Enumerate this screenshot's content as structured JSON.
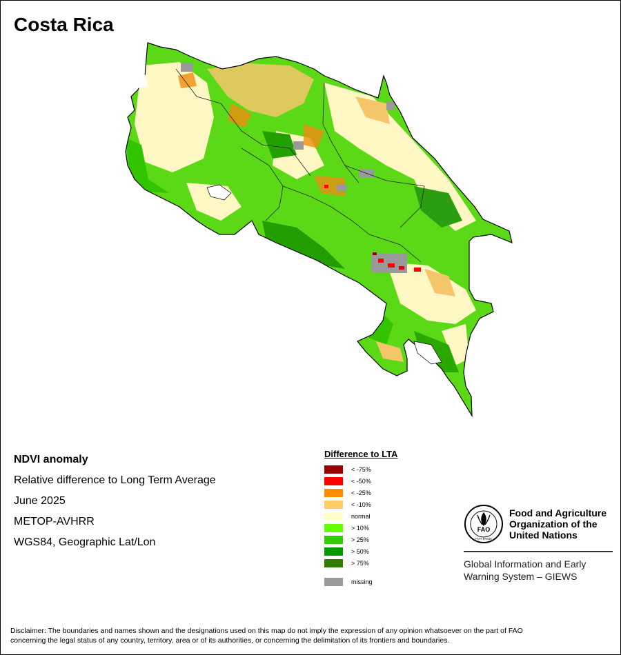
{
  "title": "Costa Rica",
  "info": {
    "heading": "NDVI anomaly",
    "line1": "Relative difference to Long Term Average",
    "line2": "June 2025",
    "line3": "METOP-AVHRR",
    "line4": "WGS84, Geographic Lat/Lon"
  },
  "legend": {
    "title": "Difference to LTA",
    "items": [
      {
        "label": "< -75%",
        "color": "#990000"
      },
      {
        "label": "< -50%",
        "color": "#ff0000"
      },
      {
        "label": "< -25%",
        "color": "#ff8c00"
      },
      {
        "label": "< -10%",
        "color": "#ffcc66"
      },
      {
        "label": "normal",
        "color": "#ffffcc"
      },
      {
        "label": "> 10%",
        "color": "#66ff00"
      },
      {
        "label": "> 25%",
        "color": "#33cc00"
      },
      {
        "label": "> 50%",
        "color": "#009900"
      },
      {
        "label": "> 75%",
        "color": "#2e7d00"
      }
    ],
    "missing": {
      "label": "missing",
      "color": "#999999"
    }
  },
  "fao": {
    "name_line1": "Food and Agriculture",
    "name_line2": "Organization of the",
    "name_line3": "United Nations",
    "giews_line1": "Global Information and Early",
    "giews_line2": "Warning System – GIEWS",
    "logo_text": "FAO",
    "logo_motto": "FIAT PANIS"
  },
  "disclaimer": {
    "line1": "Disclaimer: The boundaries and names shown and the designations used on this map do not imply the expression of any opinion whatsoever on the part of FAO",
    "line2": "concerning the legal status of any country, territory, area or of its authorities, or concerning the delimitation of its frontiers and boundaries."
  }
}
